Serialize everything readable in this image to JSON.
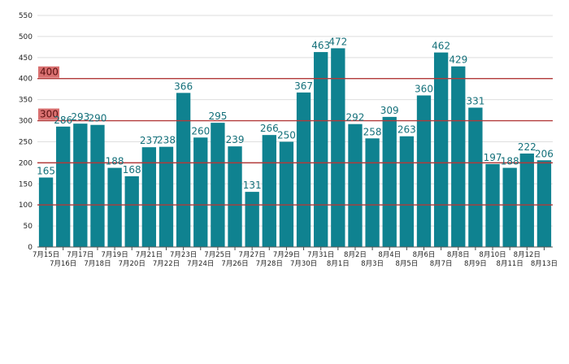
{
  "chart_data": {
    "type": "bar",
    "categories": [
      "7月15日",
      "7月16日",
      "7月17日",
      "7月18日",
      "7月19日",
      "7月20日",
      "7月21日",
      "7月22日",
      "7月23日",
      "7月24日",
      "7月25日",
      "7月26日",
      "7月27日",
      "7月28日",
      "7月29日",
      "7月30日",
      "7月31日",
      "8月1日",
      "8月2日",
      "8月3日",
      "8月4日",
      "8月5日",
      "8月6日",
      "8月7日",
      "8月8日",
      "8月9日",
      "8月10日",
      "8月11日",
      "8月12日",
      "8月13日"
    ],
    "values": [
      165,
      286,
      293,
      290,
      188,
      168,
      237,
      238,
      366,
      260,
      295,
      239,
      131,
      266,
      250,
      367,
      463,
      472,
      292,
      258,
      309,
      263,
      360,
      462,
      429,
      331,
      197,
      188,
      222,
      206
    ],
    "title": "",
    "xlabel": "",
    "ylabel": "",
    "ylim": [
      0,
      550
    ],
    "yticks": [
      0,
      50,
      100,
      150,
      200,
      250,
      300,
      350,
      400,
      450,
      500,
      550
    ],
    "grid": true,
    "reference_lines": [
      {
        "value": 400,
        "label": "400"
      },
      {
        "value": 300,
        "label": "300"
      },
      {
        "value": 200
      },
      {
        "value": 100
      }
    ],
    "colors": {
      "bar": "#0f8290",
      "reference_line": "#b23a3a",
      "reference_label_bg": "#d97070",
      "value_label": "#14707a"
    }
  }
}
